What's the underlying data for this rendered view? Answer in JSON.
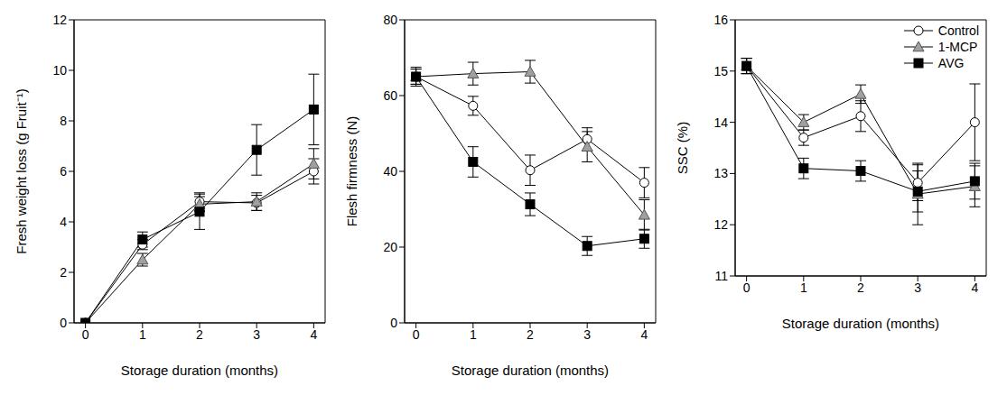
{
  "chart_data": [
    {
      "type": "line",
      "x_label": "Storage duration (months)",
      "y_label": "Fresh weight loss (g Fruit⁻¹)",
      "x": [
        0,
        1,
        2,
        3,
        4
      ],
      "xlim": [
        -0.2,
        4.2
      ],
      "xticks": [
        0,
        1,
        2,
        3,
        4
      ],
      "ylim": [
        0,
        12
      ],
      "yticks": [
        0,
        2,
        4,
        6,
        8,
        10,
        12
      ],
      "series": [
        {
          "name": "Control",
          "color": "#ffffff",
          "marker": "circle",
          "line_style": "solid",
          "values": [
            0,
            3.1,
            4.8,
            4.75,
            6.0
          ],
          "errors": [
            0,
            0.2,
            0.35,
            0.3,
            0.5
          ]
        },
        {
          "name": "1-MCP",
          "color": "#a0a0a0",
          "marker": "triangle",
          "line_style": "solid",
          "values": [
            0,
            2.5,
            4.7,
            4.8,
            6.3
          ],
          "errors": [
            0,
            0.25,
            0.3,
            0.35,
            0.6
          ]
        },
        {
          "name": "AVG",
          "color": "#000000",
          "marker": "square",
          "line_style": "solid",
          "values": [
            0,
            3.3,
            4.4,
            6.85,
            8.45
          ],
          "errors": [
            0,
            0.3,
            0.7,
            1.0,
            1.4
          ]
        }
      ]
    },
    {
      "type": "line",
      "x_label": "Storage duration (months)",
      "y_label": "Flesh firmness (N)",
      "x": [
        0,
        1,
        2,
        3,
        4
      ],
      "xlim": [
        -0.2,
        4.2
      ],
      "xticks": [
        0,
        1,
        2,
        3,
        4
      ],
      "ylim": [
        0,
        80
      ],
      "yticks": [
        0,
        20,
        40,
        60,
        80
      ],
      "series": [
        {
          "name": "Control",
          "color": "#ffffff",
          "marker": "circle",
          "line_style": "solid",
          "values": [
            65,
            57.3,
            40.3,
            48.5,
            37
          ],
          "errors": [
            2.5,
            2.5,
            4,
            3,
            4
          ]
        },
        {
          "name": "1-MCP",
          "color": "#a0a0a0",
          "marker": "triangle",
          "line_style": "solid",
          "values": [
            65,
            65.8,
            66.3,
            46.5,
            28.5
          ],
          "errors": [
            2,
            3,
            3,
            4,
            4
          ]
        },
        {
          "name": "AVG",
          "color": "#000000",
          "marker": "square",
          "line_style": "solid",
          "values": [
            65,
            42.5,
            31.3,
            20.3,
            22.2
          ],
          "errors": [
            2,
            4,
            3,
            2.5,
            2.5
          ]
        }
      ]
    },
    {
      "type": "line",
      "x_label": "Storage duration (months)",
      "y_label": "SSC (%)",
      "x": [
        0,
        1,
        2,
        3,
        4
      ],
      "xlim": [
        -0.2,
        4.2
      ],
      "xticks": [
        0,
        1,
        2,
        3,
        4
      ],
      "ylim": [
        11,
        16
      ],
      "yticks": [
        11,
        12,
        13,
        14,
        15,
        16
      ],
      "legend": "upper right",
      "series": [
        {
          "name": "Control",
          "color": "#ffffff",
          "marker": "circle",
          "line_style": "solid",
          "values": [
            15.1,
            13.7,
            14.12,
            12.82,
            14.0
          ],
          "errors": [
            0.15,
            0.15,
            0.3,
            0.35,
            0.75
          ]
        },
        {
          "name": "1-MCP",
          "color": "#a0a0a0",
          "marker": "triangle",
          "line_style": "solid",
          "values": [
            15.1,
            14.0,
            14.55,
            12.6,
            12.75
          ],
          "errors": [
            0.15,
            0.15,
            0.18,
            0.6,
            0.4
          ]
        },
        {
          "name": "AVG",
          "color": "#000000",
          "marker": "square",
          "line_style": "solid",
          "values": [
            15.1,
            13.1,
            13.05,
            12.65,
            12.85
          ],
          "errors": [
            0.15,
            0.2,
            0.2,
            0.4,
            0.35
          ]
        }
      ]
    }
  ]
}
